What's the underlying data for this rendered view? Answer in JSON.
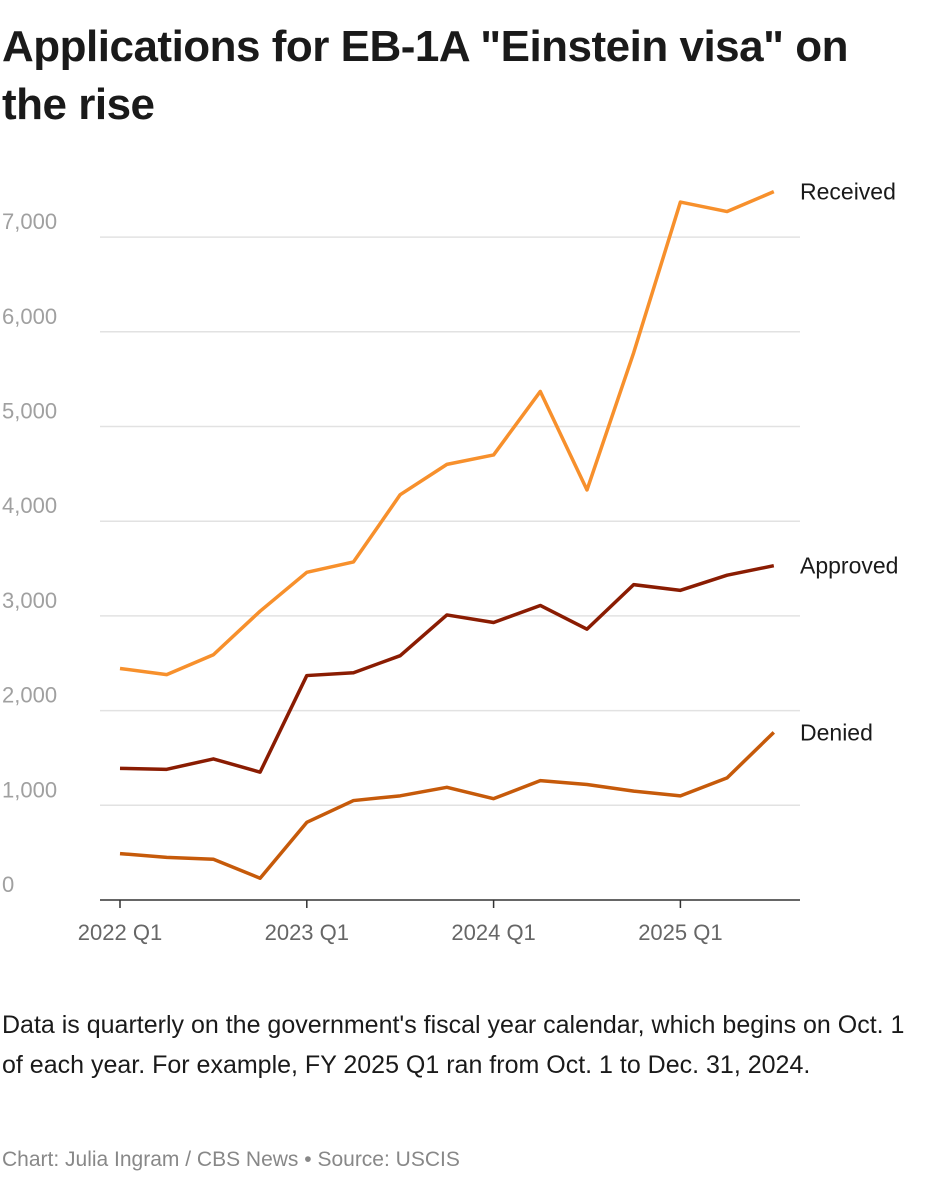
{
  "title": "Applications for EB-1A \"Einstein visa\" on the rise",
  "note": "Data is quarterly on the government's fiscal year calendar, which begins on Oct. 1 of each year. For example, FY 2025 Q1 ran from Oct. 1 to Dec. 31, 2024.",
  "credit": "Chart: Julia Ingram / CBS News • Source: USCIS",
  "chart_data": {
    "type": "line",
    "title": "Applications for EB-1A \"Einstein visa\" on the rise",
    "xlabel": "",
    "ylabel": "",
    "x": [
      "2022 Q1",
      "2022 Q2",
      "2022 Q3",
      "2022 Q4",
      "2023 Q1",
      "2023 Q2",
      "2023 Q3",
      "2023 Q4",
      "2024 Q1",
      "2024 Q2",
      "2024 Q3",
      "2024 Q4",
      "2025 Q1",
      "2025 Q2",
      "2025 Q3"
    ],
    "x_ticks": [
      "2022 Q1",
      "2023 Q1",
      "2024 Q1",
      "2025 Q1"
    ],
    "y_ticks": [
      0,
      1000,
      2000,
      3000,
      4000,
      5000,
      6000,
      7000
    ],
    "y_tick_labels": [
      "0",
      "1,000",
      "2,000",
      "3,000",
      "4,000",
      "5,000",
      "6,000",
      "7,000"
    ],
    "ylim": [
      0,
      7600
    ],
    "grid": true,
    "legend": "direct labels at line ends (right)",
    "series": [
      {
        "name": "Received",
        "color": "#f7902c",
        "values": [
          2445,
          2380,
          2590,
          3050,
          3460,
          3570,
          4280,
          4600,
          4700,
          5370,
          4330,
          5780,
          7370,
          7270,
          7480
        ]
      },
      {
        "name": "Approved",
        "color": "#8a1c02",
        "values": [
          1390,
          1380,
          1490,
          1350,
          2370,
          2400,
          2580,
          3010,
          2930,
          3110,
          2860,
          3330,
          3270,
          3430,
          3530
        ]
      },
      {
        "name": "Denied",
        "color": "#c65a0a",
        "values": [
          490,
          450,
          430,
          230,
          820,
          1050,
          1100,
          1190,
          1070,
          1260,
          1220,
          1150,
          1100,
          1290,
          1770
        ]
      }
    ]
  }
}
